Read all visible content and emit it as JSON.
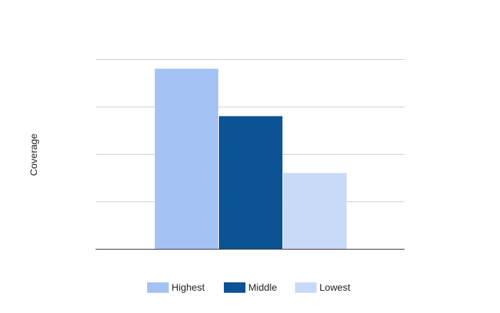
{
  "chart_data": {
    "type": "bar",
    "title": "",
    "xlabel": "",
    "ylabel": "Coverage",
    "ylim": [
      0,
      4
    ],
    "gridlines": [
      1,
      2,
      3,
      4
    ],
    "grid": true,
    "legend_position": "bottom",
    "series": [
      {
        "name": "Highest",
        "value": 3.8,
        "color": "#a4c2f4"
      },
      {
        "name": "Middle",
        "value": 2.8,
        "color": "#0b5394"
      },
      {
        "name": "Lowest",
        "value": 1.6,
        "color": "#c9daf8"
      }
    ]
  }
}
